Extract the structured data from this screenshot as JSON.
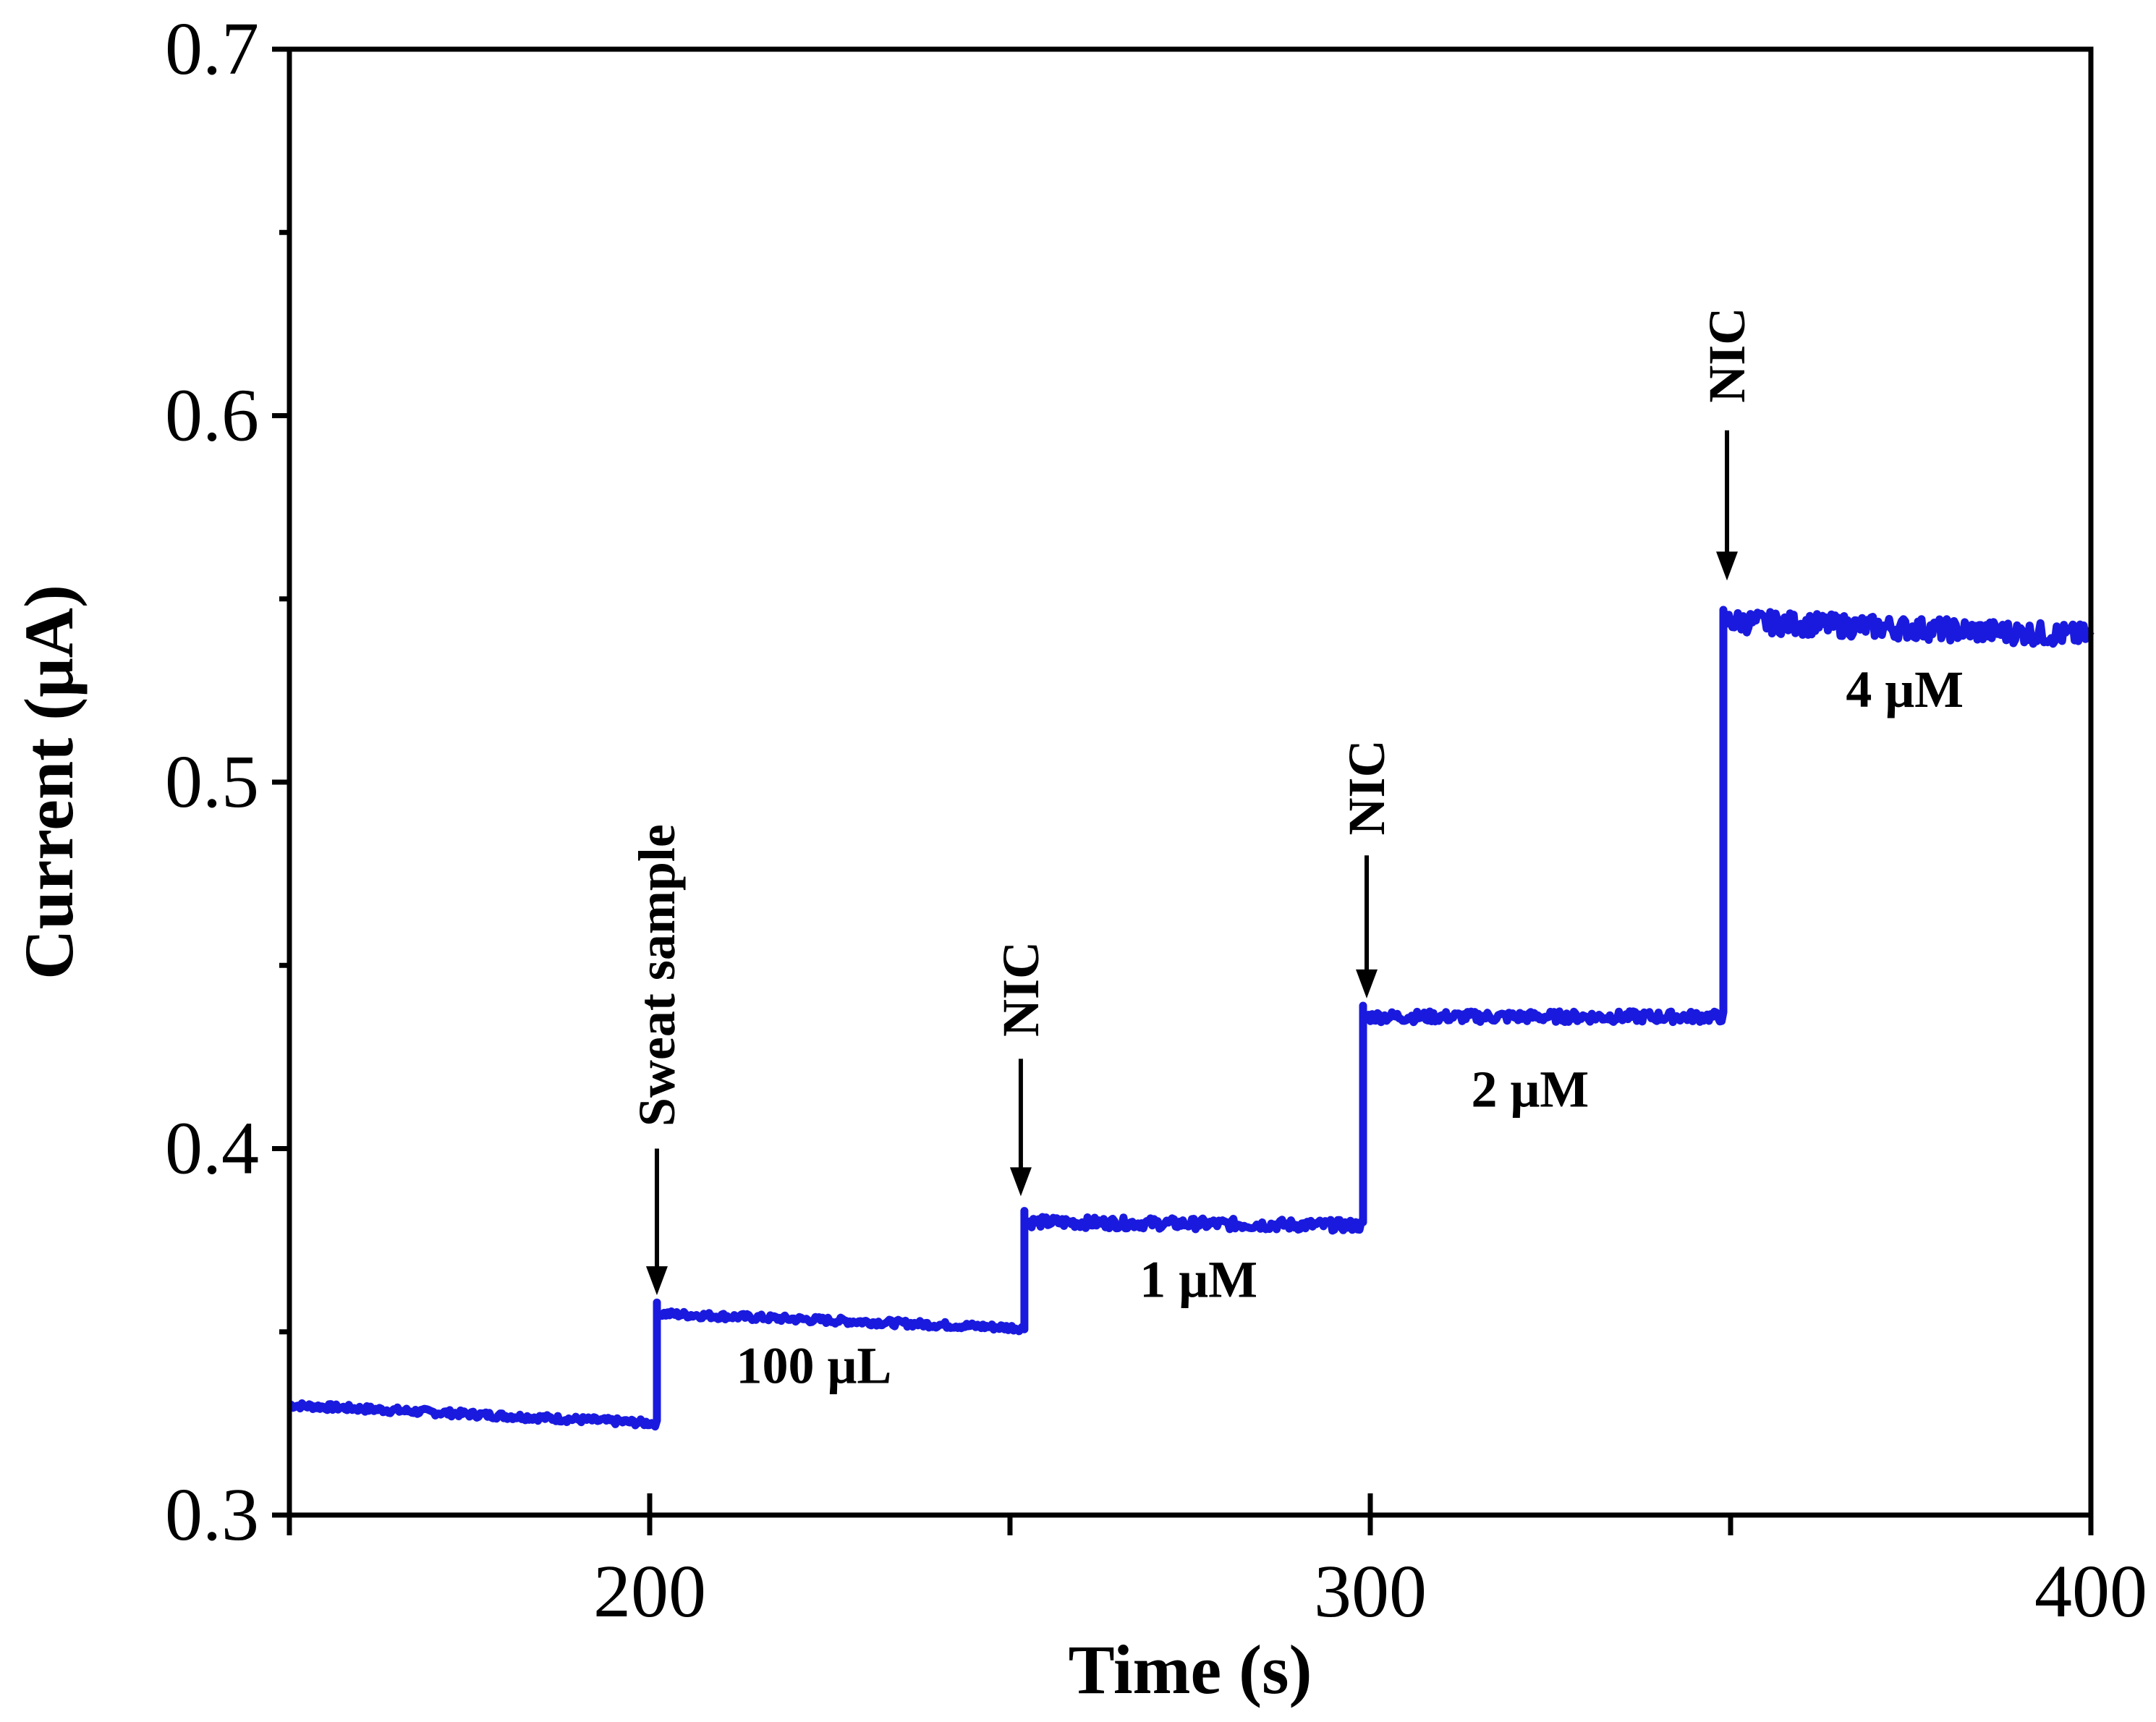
{
  "chart_data": {
    "type": "line",
    "title": "",
    "xlabel": "Time (s)",
    "ylabel": "Current (μA)",
    "xlim": [
      150,
      400
    ],
    "ylim": [
      0.3,
      0.7
    ],
    "x_ticks": [
      200,
      300,
      400
    ],
    "x_minor_ticks": [
      150,
      250,
      350
    ],
    "y_ticks": [
      0.3,
      0.4,
      0.5,
      0.6,
      0.7
    ],
    "x_tick_labels": [
      "200",
      "300",
      "400"
    ],
    "y_tick_labels": [
      "0.3",
      "0.4",
      "0.5",
      "0.6",
      "0.7"
    ],
    "series": [
      {
        "name": "current",
        "color": "#1a1adf",
        "steps": [
          {
            "t0": 150,
            "t1": 201,
            "v_start": 0.33,
            "v_end": 0.325
          },
          {
            "t0": 201,
            "t1": 252,
            "v_start": 0.355,
            "v_end": 0.351
          },
          {
            "t0": 252,
            "t1": 299,
            "v_start": 0.38,
            "v_end": 0.379
          },
          {
            "t0": 299,
            "t1": 349,
            "v_start": 0.436,
            "v_end": 0.436
          },
          {
            "t0": 349,
            "t1": 400,
            "v_start": 0.544,
            "v_end": 0.54
          }
        ]
      }
    ],
    "annotations": [
      {
        "text": "Sweat sample",
        "x": 201,
        "arrow_tip": 0.36,
        "arrow_tail": 0.4,
        "label_bottom": 0.406
      },
      {
        "text": "NIC",
        "x": 251.5,
        "arrow_tip": 0.387,
        "arrow_tail": 0.4245,
        "label_bottom": 0.4305
      },
      {
        "text": "NIC",
        "x": 299.5,
        "arrow_tip": 0.441,
        "arrow_tail": 0.48,
        "label_bottom": 0.4855
      },
      {
        "text": "NIC",
        "x": 349.5,
        "arrow_tip": 0.555,
        "arrow_tail": 0.596,
        "label_bottom": 0.6035
      }
    ],
    "level_labels": [
      {
        "text": "100 μL",
        "x": 212,
        "y": 0.336
      },
      {
        "text": "1 μM",
        "x": 268,
        "y": 0.3595
      },
      {
        "text": "2 μM",
        "x": 314,
        "y": 0.4115
      },
      {
        "text": "4 μM",
        "x": 366,
        "y": 0.5205
      }
    ]
  }
}
